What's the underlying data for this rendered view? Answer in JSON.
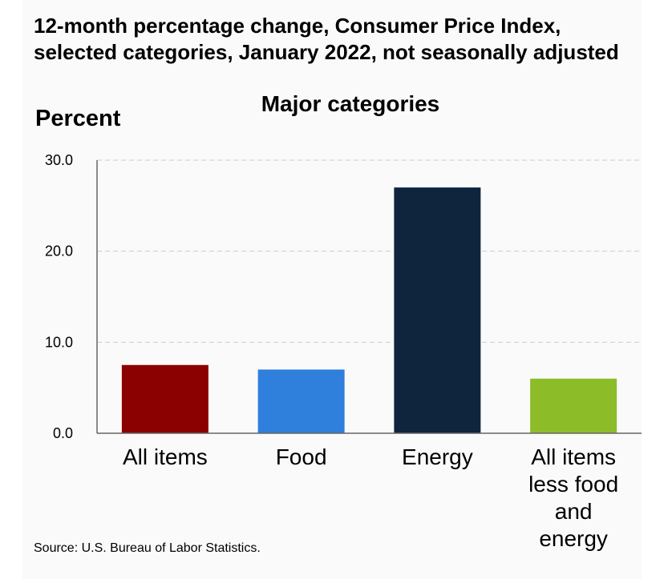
{
  "title": "12-month percentage change, Consumer Price Index, selected categories, January 2022, not seasonally adjusted",
  "subtitle": "Major categories",
  "source": "Source: U.S. Bureau of Labor Statistics.",
  "colors": {
    "all_items": "#8b0000",
    "food": "#2f7fdc",
    "energy": "#0f243d",
    "core": "#8cbd28",
    "grid": "#cccccc",
    "axis": "#666666"
  },
  "chart_data": {
    "type": "bar",
    "categories": [
      "All items",
      "Food",
      "Energy",
      "All items less food and energy"
    ],
    "category_lines": [
      [
        "All items"
      ],
      [
        "Food"
      ],
      [
        "Energy"
      ],
      [
        "All items",
        "less food",
        "and",
        "energy"
      ]
    ],
    "values": [
      7.5,
      7.0,
      27.0,
      6.0
    ],
    "bar_colors": [
      "#8b0000",
      "#2f7fdc",
      "#0f243d",
      "#8cbd28"
    ],
    "ylabel": "Percent",
    "ylim": [
      0,
      30
    ],
    "yticks": [
      "0.0",
      "10.0",
      "20.0",
      "30.0"
    ],
    "ytick_values": [
      0,
      10,
      20,
      30
    ],
    "grid": true,
    "grid_style": "dashed"
  }
}
